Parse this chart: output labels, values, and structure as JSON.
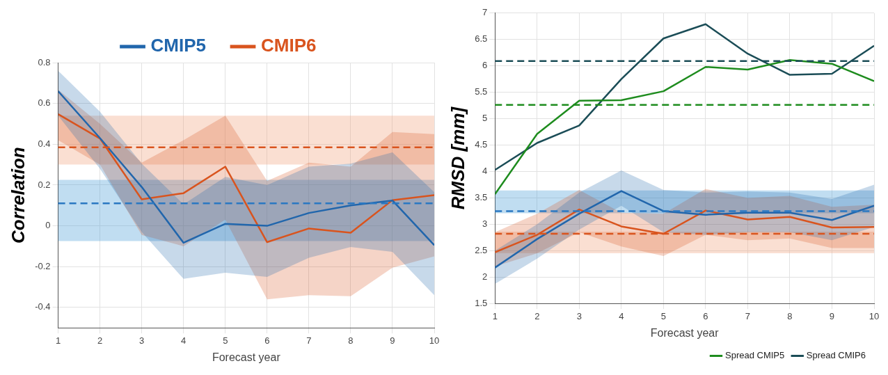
{
  "chart_data": [
    {
      "type": "line",
      "xlabel": "Forecast year",
      "ylabel": "Correlation",
      "x": [
        1,
        2,
        3,
        4,
        5,
        6,
        7,
        8,
        9,
        10
      ],
      "xlim": [
        1,
        10
      ],
      "xticks": [
        1,
        2,
        3,
        4,
        5,
        6,
        7,
        8,
        9,
        10
      ],
      "ylim": [
        -0.5,
        0.8
      ],
      "yticks": [
        -0.4,
        -0.2,
        0,
        0.2,
        0.4,
        0.6,
        0.8
      ],
      "grid": true,
      "legend": "top",
      "marker": "none",
      "series": [
        {
          "name": "CMIP5",
          "color": "#2166ac",
          "values": [
            0.66,
            0.43,
            0.19,
            -0.083,
            0.01,
            0,
            0.063,
            0.1,
            0.124,
            -0.095
          ],
          "lower": [
            0.54,
            0.28,
            -0.03,
            -0.26,
            -0.23,
            -0.25,
            -0.157,
            -0.104,
            -0.128,
            -0.34
          ],
          "upper": [
            0.76,
            0.56,
            0.305,
            0.105,
            0.24,
            0.2,
            0.29,
            0.305,
            0.36,
            0.165
          ]
        },
        {
          "name": "CMIP6",
          "color": "#d9541e",
          "values": [
            0.547,
            0.428,
            0.13,
            0.16,
            0.29,
            -0.08,
            -0.013,
            -0.034,
            0.126,
            0.15
          ],
          "lower": [
            0.42,
            0.3,
            -0.045,
            -0.1,
            0.03,
            -0.36,
            -0.34,
            -0.345,
            -0.205,
            -0.15
          ],
          "upper": [
            0.667,
            0.5,
            0.31,
            0.42,
            0.54,
            0.22,
            0.31,
            0.29,
            0.46,
            0.45
          ]
        }
      ],
      "bands": [
        {
          "axis": "y",
          "from": -0.075,
          "to": 0.225,
          "color": "#4a9fd8"
        },
        {
          "axis": "y",
          "from": 0.3,
          "to": 0.54,
          "color": "#f0a27e"
        }
      ],
      "ref_lines": [
        {
          "axis": "y",
          "value": 0.11,
          "color": "#2a78c2",
          "line_style": "dashed"
        },
        {
          "axis": "y",
          "value": 0.385,
          "color": "#d9541e",
          "line_style": "dashed"
        }
      ]
    },
    {
      "type": "line",
      "xlabel": "Forecast year",
      "ylabel": "RMSD [mm]",
      "x": [
        1,
        2,
        3,
        4,
        5,
        6,
        7,
        8,
        9,
        10
      ],
      "xlim": [
        1,
        10
      ],
      "xticks": [
        1,
        2,
        3,
        4,
        5,
        6,
        7,
        8,
        9,
        10
      ],
      "ylim": [
        1.5,
        7
      ],
      "yticks": [
        1.5,
        2,
        2.5,
        3,
        3.5,
        4,
        4.5,
        5,
        5.5,
        6,
        6.5,
        7
      ],
      "grid": true,
      "legend": "bottom right",
      "marker": "none",
      "series": [
        {
          "name": "Spread CMIP5",
          "color": "#1e8c1e",
          "values": [
            3.57,
            4.71,
            5.34,
            5.35,
            5.52,
            5.98,
            5.93,
            6.11,
            6.04,
            5.71
          ]
        },
        {
          "name": "Spread CMIP6",
          "color": "#1b4d57",
          "values": [
            4.03,
            4.54,
            4.87,
            5.75,
            6.52,
            6.79,
            6.23,
            5.83,
            5.85,
            6.38
          ]
        },
        {
          "color": "#2166ac",
          "values": [
            2.18,
            2.72,
            3.2,
            3.63,
            3.25,
            3.18,
            3.22,
            3.22,
            3.08,
            3.35
          ],
          "lower": [
            1.87,
            2.35,
            2.9,
            3.35,
            2.85,
            2.8,
            2.85,
            2.85,
            2.7,
            2.95
          ],
          "upper": [
            2.5,
            3.0,
            3.6,
            4.02,
            3.65,
            3.6,
            3.62,
            3.6,
            3.48,
            3.75
          ]
        },
        {
          "color": "#d9541e",
          "values": [
            2.47,
            2.8,
            3.28,
            2.96,
            2.82,
            3.26,
            3.09,
            3.14,
            2.94,
            2.95
          ],
          "lower": [
            2.2,
            2.45,
            2.85,
            2.58,
            2.4,
            2.8,
            2.7,
            2.73,
            2.55,
            2.55
          ],
          "upper": [
            2.85,
            3.2,
            3.65,
            3.22,
            3.2,
            3.67,
            3.5,
            3.54,
            3.33,
            3.37
          ]
        }
      ],
      "bands": [
        {
          "axis": "y",
          "from": 3.21,
          "to": 3.64,
          "color": "#4a9fd8"
        },
        {
          "axis": "y",
          "from": 2.45,
          "to": 2.86,
          "color": "#f0a27e"
        }
      ],
      "ref_lines": [
        {
          "axis": "y",
          "value": 6.09,
          "color": "#1b4d57",
          "line_style": "dashed"
        },
        {
          "axis": "y",
          "value": 5.26,
          "color": "#1e8c1e",
          "line_style": "dashed"
        },
        {
          "axis": "y",
          "value": 3.25,
          "color": "#2a78c2",
          "line_style": "dashed"
        },
        {
          "axis": "y",
          "value": 2.82,
          "color": "#d9541e",
          "line_style": "dashed"
        }
      ]
    }
  ]
}
